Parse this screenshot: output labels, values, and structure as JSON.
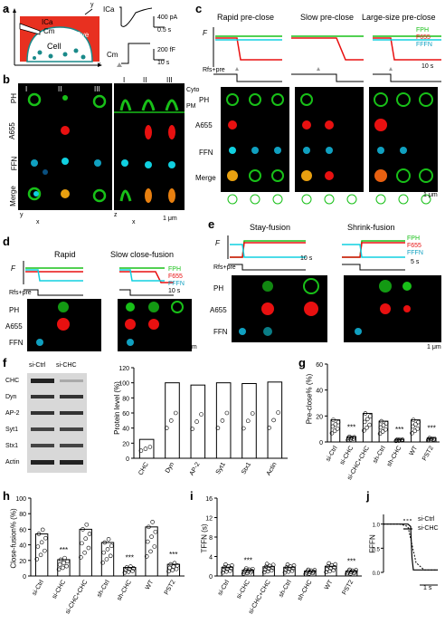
{
  "colors": {
    "ph": "#18c018",
    "a655": "#e81010",
    "ffn": "#10d0e0",
    "bg": "#000000",
    "cell": "#e83020",
    "bar": "#ffffff"
  },
  "panels": {
    "a": {
      "label": "a",
      "icap": "ICa",
      "cm": "Cm",
      "cell": "Cell",
      "dye": "Dye",
      "z": "z",
      "x": "x",
      "y": "y",
      "ica_label": "ICa",
      "ica_scale": "400 pA",
      "ica_time": "0.5 s",
      "cm_label": "Cm",
      "cm_scale": "200 fF",
      "cm_time": "10 s"
    },
    "b": {
      "label": "b",
      "rows": [
        "PH",
        "A655",
        "FFN",
        "Merge"
      ],
      "cols": [
        "I",
        "II",
        "III"
      ],
      "cyto": "Cyto",
      "pm": "PM",
      "ylab": "y",
      "xlab": "x",
      "zlab": "z",
      "scale": "1 μm"
    },
    "c": {
      "label": "c",
      "titles": [
        "Rapid pre-close",
        "Slow pre-close",
        "Large-size pre-close"
      ],
      "fy": "F",
      "legend": [
        "FPH",
        "F655",
        "FFFN"
      ],
      "time": "10 s",
      "rfs": "Rfs+pre",
      "rows": [
        "PH",
        "A655",
        "FFN",
        "Merge"
      ],
      "scale": "1 μm"
    },
    "d": {
      "label": "d",
      "titles": [
        "Rapid",
        "Slow close-fusion"
      ],
      "fy": "F",
      "legend": [
        "FPH",
        "F655",
        "FFFN"
      ],
      "time": "10 s",
      "rfs": "Rfs+pre",
      "rows": [
        "PH",
        "A655",
        "FFN"
      ],
      "scale": "1 μm"
    },
    "e": {
      "label": "e",
      "titles": [
        "Stay-fusion",
        "Shrink-fusion"
      ],
      "fy": "F",
      "legend": [
        "FPH",
        "F655",
        "FFFN"
      ],
      "time1": "10 s",
      "time2": "5 s",
      "rfs": "Rfs+pre",
      "rows": [
        "PH",
        "A655",
        "FFN"
      ],
      "scale": "1 μm"
    },
    "f": {
      "label": "f",
      "blot_cols": [
        "si-Ctrl",
        "si-CHC"
      ],
      "proteins": [
        "CHC",
        "Dyn",
        "AP-2",
        "Syt1",
        "Stx1",
        "Actin"
      ],
      "ylabel": "Protein level (%)"
    },
    "g": {
      "label": "g",
      "ylabel": "Pre-close% (%)",
      "cats": [
        "si-Ctrl",
        "si-CHC",
        "si-CHC+CHC",
        "sh-Ctrl",
        "sh-CHC",
        "WT",
        "PST2"
      ]
    },
    "h": {
      "label": "h",
      "ylabel": "Close-fusion% (%)",
      "cats": [
        "si-Ctrl",
        "si-CHC",
        "si-CHC+CHC",
        "sh-Ctrl",
        "sh-CHC",
        "WT",
        "PST2"
      ]
    },
    "i": {
      "label": "i",
      "ylabel": "TFFN (s)",
      "cats": [
        "si-Ctrl",
        "si-CHC",
        "si-CHC+CHC",
        "sh-Ctrl",
        "sh-CHC",
        "WT",
        "PST2"
      ]
    },
    "j": {
      "label": "j",
      "ylabel": "FFFN",
      "legend": [
        "si-Ctrl",
        "si-CHC"
      ],
      "time": "1 s",
      "yticks": [
        "1.0",
        "0.5",
        "0.0"
      ]
    }
  },
  "stats": {
    "sig": "***"
  },
  "chart_data": [
    {
      "type": "bar",
      "title": "",
      "ylabel": "Protein level (%)",
      "categories": [
        "CHC",
        "Dyn",
        "AP-2",
        "Syt1",
        "Stx1",
        "Actin"
      ],
      "values": [
        25,
        100,
        97,
        100,
        99,
        101
      ],
      "ylim": [
        0,
        120
      ],
      "yticks": [
        0,
        20,
        40,
        60,
        80,
        100,
        120
      ]
    },
    {
      "type": "bar",
      "title": "",
      "ylabel": "Pre-close% (%)",
      "categories": [
        "si-Ctrl",
        "si-CHC",
        "si-CHC+CHC",
        "sh-Ctrl",
        "sh-CHC",
        "WT",
        "PST2"
      ],
      "values": [
        17,
        4,
        22,
        16,
        2,
        17,
        3
      ],
      "ylim": [
        0,
        60
      ],
      "yticks": [
        0,
        20,
        40,
        60
      ],
      "significance": [
        "",
        "***",
        "",
        "",
        "***",
        "",
        "***"
      ]
    },
    {
      "type": "bar",
      "title": "",
      "ylabel": "Close-fusion% (%)",
      "categories": [
        "si-Ctrl",
        "si-CHC",
        "si-CHC+CHC",
        "sh-Ctrl",
        "sh-CHC",
        "WT",
        "PST2"
      ],
      "values": [
        54,
        21,
        60,
        43,
        11,
        63,
        15
      ],
      "ylim": [
        0,
        100
      ],
      "yticks": [
        0,
        20,
        40,
        60,
        80,
        100
      ],
      "significance": [
        "",
        "***",
        "",
        "",
        "***",
        "",
        "***"
      ]
    },
    {
      "type": "bar",
      "title": "",
      "ylabel": "TFFN (s)",
      "categories": [
        "si-Ctrl",
        "si-CHC",
        "si-CHC+CHC",
        "sh-Ctrl",
        "sh-CHC",
        "WT",
        "PST2"
      ],
      "values": [
        1.8,
        1.2,
        1.9,
        1.8,
        1.0,
        2.0,
        1.0
      ],
      "ylim": [
        0,
        16
      ],
      "yticks": [
        0,
        4,
        8,
        12,
        16
      ],
      "significance": [
        "",
        "***",
        "",
        "",
        "",
        "",
        "***"
      ]
    },
    {
      "type": "line",
      "title": "",
      "ylabel": "FFFN",
      "series": [
        {
          "name": "si-Ctrl",
          "x": [
            0,
            0.3,
            0.6,
            0.9,
            1.0,
            1.2,
            1.5,
            2.0
          ],
          "y": [
            1.0,
            1.0,
            1.0,
            0.95,
            0.7,
            0.2,
            0.05,
            0.05
          ]
        },
        {
          "name": "si-CHC",
          "x": [
            0,
            0.3,
            0.6,
            0.9,
            1.0,
            1.05,
            1.1,
            2.0
          ],
          "y": [
            1.0,
            1.0,
            1.0,
            1.0,
            0.95,
            0.3,
            0.05,
            0.05
          ]
        }
      ],
      "ylim": [
        0,
        1.2
      ],
      "yticks": [
        0.0,
        0.5,
        1.0
      ]
    }
  ]
}
